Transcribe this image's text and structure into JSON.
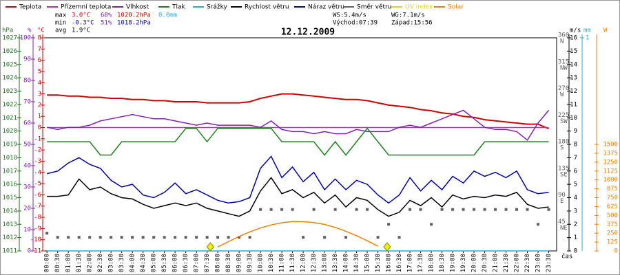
{
  "chart_data": {
    "type": "line",
    "title": "12.12.2009",
    "x_label": "čas",
    "stats": {
      "rows": [
        {
          "label": "max",
          "items": [
            "3.0°C",
            "68%",
            "1020.2hPa",
            "0.0mm"
          ]
        },
        {
          "label": "min",
          "items": [
            "-0.3°C",
            "51%",
            "1018.2hPa"
          ]
        },
        {
          "label": "avg",
          "items": [
            "1.9°C"
          ]
        }
      ],
      "wind": [
        "WS:5.4m/s",
        "WG:7.1m/s"
      ],
      "sun": [
        "Východ:07:39",
        "Západ:15:56"
      ]
    },
    "x": [
      0,
      0.5,
      1,
      1.5,
      2,
      2.5,
      3,
      3.5,
      4,
      4.5,
      5,
      5.5,
      6,
      6.5,
      7,
      7.5,
      8,
      8.5,
      9,
      9.5,
      10,
      10.5,
      11,
      11.5,
      12,
      12.5,
      13,
      13.5,
      14,
      14.5,
      15,
      15.5,
      16,
      16.5,
      17,
      17.5,
      18,
      18.5,
      19,
      19.5,
      20,
      20.5,
      21,
      21.5,
      22,
      22.5,
      23,
      23.5
    ],
    "xlim": [
      -0.2,
      23.87
    ],
    "xticks": [
      {
        "value": 0,
        "label": "00:00"
      },
      {
        "value": 0.5,
        "label": "00:30"
      },
      {
        "value": 1,
        "label": "01:00"
      },
      {
        "value": 1.5,
        "label": "01:30"
      },
      {
        "value": 2,
        "label": "02:00"
      },
      {
        "value": 2.5,
        "label": "02:30"
      },
      {
        "value": 3,
        "label": "03:00"
      },
      {
        "value": 3.5,
        "label": "03:30"
      },
      {
        "value": 4,
        "label": "04:00"
      },
      {
        "value": 4.5,
        "label": "04:30"
      },
      {
        "value": 5,
        "label": "05:00"
      },
      {
        "value": 5.5,
        "label": "05:30"
      },
      {
        "value": 6,
        "label": "06:00"
      },
      {
        "value": 6.5,
        "label": "06:30"
      },
      {
        "value": 7,
        "label": "07:00"
      },
      {
        "value": 7.5,
        "label": "07:30"
      },
      {
        "value": 8,
        "label": "08:00"
      },
      {
        "value": 8.5,
        "label": "08:30"
      },
      {
        "value": 9,
        "label": "09:00"
      },
      {
        "value": 9.5,
        "label": "09:30"
      },
      {
        "value": 10,
        "label": "10:00"
      },
      {
        "value": 10.5,
        "label": "10:30"
      },
      {
        "value": 11,
        "label": "11:00"
      },
      {
        "value": 11.5,
        "label": "11:30"
      },
      {
        "value": 12,
        "label": "12:00"
      },
      {
        "value": 12.5,
        "label": "12:30"
      },
      {
        "value": 13,
        "label": "13:00"
      },
      {
        "value": 13.5,
        "label": "13:30"
      },
      {
        "value": 14,
        "label": "14:00"
      },
      {
        "value": 14.5,
        "label": "14:30"
      },
      {
        "value": 15,
        "label": "15:00"
      },
      {
        "value": 15.5,
        "label": "15:30"
      },
      {
        "value": 16,
        "label": "16:00"
      },
      {
        "value": 16.5,
        "label": "16:30"
      },
      {
        "value": 17,
        "label": "17:00"
      },
      {
        "value": 17.5,
        "label": "17:30"
      },
      {
        "value": 18,
        "label": "18:00"
      },
      {
        "value": 18.5,
        "label": "18:30"
      },
      {
        "value": 19,
        "label": "19:00"
      },
      {
        "value": 19.5,
        "label": "19:30"
      },
      {
        "value": 20,
        "label": "20:00"
      },
      {
        "value": 20.5,
        "label": "20:30"
      },
      {
        "value": 21,
        "label": "21:00"
      },
      {
        "value": 21.5,
        "label": "21:30"
      },
      {
        "value": 22,
        "label": "22:00"
      },
      {
        "value": 22.5,
        "label": "22:30"
      },
      {
        "value": 23,
        "label": "23:00"
      },
      {
        "value": 23.5,
        "label": "23:30"
      }
    ],
    "axes": {
      "press": {
        "unit": "hPa",
        "color": "#207020",
        "lim": [
          1011,
          1027
        ],
        "ticks": [
          1011,
          1012,
          1013,
          1014,
          1015,
          1016,
          1017,
          1018,
          1019,
          1020,
          1021,
          1022,
          1023,
          1024,
          1025,
          1026,
          1027
        ]
      },
      "hum": {
        "unit": "%",
        "color": "#8020b0",
        "lim": [
          0,
          100
        ],
        "ticks": [
          0,
          10,
          20,
          30,
          40,
          50,
          60,
          70,
          80,
          90,
          100
        ]
      },
      "temp": {
        "unit": "°C",
        "color": "#d00000",
        "lim": [
          -11,
          8
        ],
        "ticks": [
          -11,
          -10,
          -9,
          -8,
          -7,
          -6,
          -5,
          -4,
          -3,
          -2,
          -1,
          0,
          1,
          2,
          3,
          4,
          5,
          6,
          7,
          8
        ]
      },
      "dir": {
        "color": "#606060",
        "lim": [
          0,
          360
        ],
        "ticks": [
          360,
          315,
          270,
          225,
          180,
          135,
          90,
          45
        ],
        "compass": [
          "N",
          "NW",
          "W",
          "SW",
          "S",
          "SE",
          "E",
          "NE"
        ]
      },
      "wind": {
        "unit": "m/s",
        "color": "#000000",
        "lim": [
          0,
          16
        ],
        "ticks": [
          0,
          1,
          2,
          3,
          4,
          5,
          6,
          7,
          8,
          9,
          10,
          11,
          12,
          13,
          14,
          15,
          16
        ]
      },
      "rain": {
        "unit": "mm",
        "color": "#20b0d0",
        "lim": [
          0,
          1
        ],
        "ticks": [
          1
        ]
      },
      "solar": {
        "unit": "W",
        "color": "#f08000",
        "lim": [
          0,
          3000
        ],
        "ticks": [
          0,
          125,
          250,
          375,
          500,
          625,
          750,
          875,
          1000,
          1125,
          1250,
          1375,
          1500
        ]
      }
    },
    "sun_markers": [
      7.65,
      15.93
    ],
    "series": [
      {
        "name": "Teplota",
        "color": "#d00000",
        "axis": "temp",
        "values": [
          2.9,
          2.9,
          2.8,
          2.8,
          2.7,
          2.7,
          2.6,
          2.6,
          2.5,
          2.5,
          2.4,
          2.4,
          2.3,
          2.3,
          2.3,
          2.2,
          2.2,
          2.2,
          2.2,
          2.3,
          2.6,
          2.8,
          3.0,
          3.0,
          2.9,
          2.8,
          2.7,
          2.6,
          2.5,
          2.5,
          2.4,
          2.2,
          2.0,
          1.9,
          1.8,
          1.6,
          1.5,
          1.3,
          1.2,
          1.0,
          0.9,
          0.7,
          0.6,
          0.5,
          0.4,
          0.3,
          0.3,
          -0.1
        ]
      },
      {
        "name": "Přízemní teplota",
        "color": "#d020d0",
        "axis": "temp",
        "values": [
          0,
          0,
          0,
          0,
          0,
          0,
          0,
          0,
          0,
          0,
          0,
          0,
          0,
          0,
          0,
          0,
          0,
          0,
          0,
          0,
          0,
          0,
          0,
          0,
          0,
          0,
          0,
          0,
          0,
          0,
          0,
          0,
          0,
          0,
          0,
          0,
          0,
          0,
          0,
          0,
          0,
          0,
          0,
          0,
          0,
          0,
          0,
          0
        ]
      },
      {
        "name": "Vlhkost",
        "color": "#8020b0",
        "axis": "hum",
        "values": [
          58,
          57,
          58,
          58,
          59,
          61,
          62,
          63,
          64,
          63,
          62,
          62,
          61,
          60,
          59,
          60,
          59,
          59,
          59,
          59,
          58,
          61,
          57,
          56,
          56,
          55,
          56,
          55,
          55,
          57,
          56,
          56,
          56,
          58,
          59,
          58,
          60,
          62,
          64,
          66,
          62,
          58,
          57,
          57,
          56,
          52,
          60,
          66
        ]
      },
      {
        "name": "Tlak",
        "color": "#208020",
        "axis": "press",
        "values": [
          1019.2,
          1019.2,
          1019.2,
          1019.2,
          1019.2,
          1018.2,
          1018.2,
          1019.2,
          1019.2,
          1019.2,
          1019.2,
          1019.2,
          1019.2,
          1020.2,
          1020.2,
          1019.2,
          1020.2,
          1020.2,
          1020.2,
          1020.2,
          1020.2,
          1020.2,
          1019.2,
          1019.2,
          1019.2,
          1019.2,
          1018.2,
          1019.2,
          1018.2,
          1019.2,
          1020.2,
          1019.2,
          1018.2,
          1018.2,
          1018.2,
          1018.2,
          1018.2,
          1018.2,
          1018.2,
          1018.2,
          1018.2,
          1019.2,
          1019.2,
          1019.2,
          1019.2,
          1019.2,
          1019.2,
          1019.2
        ]
      },
      {
        "name": "Srážky",
        "color": "#20b0d0",
        "axis": "rain",
        "values": [
          0,
          0,
          0,
          0,
          0,
          0,
          0,
          0,
          0,
          0,
          0,
          0,
          0,
          0,
          0,
          0,
          0,
          0,
          0,
          0,
          0,
          0,
          0,
          0,
          0,
          0,
          0,
          0,
          0,
          0,
          0,
          0,
          0,
          0,
          0,
          0,
          0,
          0,
          0,
          0,
          0,
          0,
          0,
          0,
          0,
          0,
          0,
          0
        ]
      },
      {
        "name": "Rychlost větru",
        "color": "#000000",
        "axis": "wind",
        "values": [
          4.1,
          4.1,
          4.2,
          5.4,
          4.6,
          4.8,
          4.3,
          4.0,
          3.9,
          3.5,
          3.2,
          3.4,
          3.6,
          3.4,
          3.6,
          3.2,
          3.0,
          2.8,
          2.6,
          3.0,
          4.5,
          5.5,
          4.3,
          4.6,
          4.0,
          4.4,
          3.6,
          4.2,
          3.3,
          4.0,
          3.8,
          3.1,
          2.6,
          2.9,
          3.8,
          3.4,
          4.0,
          3.3,
          4.2,
          3.9,
          4.1,
          4.0,
          4.2,
          4.1,
          4.4,
          3.5,
          3.2,
          3.3
        ]
      },
      {
        "name": "Náraz větru",
        "color": "#0000a0",
        "axis": "wind",
        "values": [
          5.8,
          6.0,
          6.6,
          7.0,
          6.5,
          6.2,
          5.3,
          4.8,
          5.0,
          4.2,
          4.0,
          4.4,
          5.1,
          4.3,
          4.6,
          4.2,
          3.8,
          3.6,
          3.7,
          4.0,
          6.2,
          7.1,
          5.5,
          6.3,
          5.2,
          5.9,
          4.6,
          5.4,
          4.6,
          5.3,
          5.0,
          4.2,
          3.6,
          4.2,
          5.5,
          4.5,
          5.3,
          4.6,
          5.6,
          5.1,
          6.0,
          5.6,
          5.9,
          5.5,
          6.0,
          4.6,
          4.3,
          4.4
        ]
      },
      {
        "name": "Směr větru",
        "color": "#606060",
        "axis": "dir",
        "marker": "square",
        "values": [
          30,
          23,
          23,
          23,
          23,
          23,
          23,
          23,
          23,
          23,
          23,
          23,
          23,
          23,
          23,
          23,
          23,
          23,
          23,
          23,
          70,
          70,
          70,
          70,
          23,
          70,
          23,
          70,
          23,
          70,
          70,
          23,
          45,
          23,
          70,
          70,
          45,
          70,
          70,
          70,
          70,
          70,
          70,
          70,
          70,
          70,
          45,
          70
        ]
      },
      {
        "name": "UV index",
        "color": "#f0d000",
        "axis": "solar",
        "values": [
          null,
          null,
          null,
          null,
          null,
          null,
          null,
          null,
          null,
          null,
          null,
          null,
          null,
          null,
          null,
          null,
          null,
          null,
          null,
          null,
          null,
          null,
          null,
          null,
          null,
          null,
          null,
          null,
          null,
          null,
          null,
          null,
          null,
          null,
          null,
          null,
          null,
          null,
          null,
          null,
          null,
          null,
          null,
          null,
          null,
          null,
          null,
          null
        ]
      },
      {
        "name": "Solar",
        "color": "#f08000",
        "axis": "solar",
        "values": [
          null,
          null,
          null,
          null,
          null,
          null,
          null,
          null,
          null,
          null,
          null,
          null,
          null,
          null,
          null,
          null,
          55,
          131,
          204,
          268,
          323,
          366,
          397,
          413,
          412,
          400,
          374,
          331,
          277,
          214,
          143,
          67,
          null,
          null,
          null,
          null,
          null,
          null,
          null,
          null,
          null,
          null,
          null,
          null,
          null,
          null,
          null,
          null
        ]
      }
    ]
  }
}
